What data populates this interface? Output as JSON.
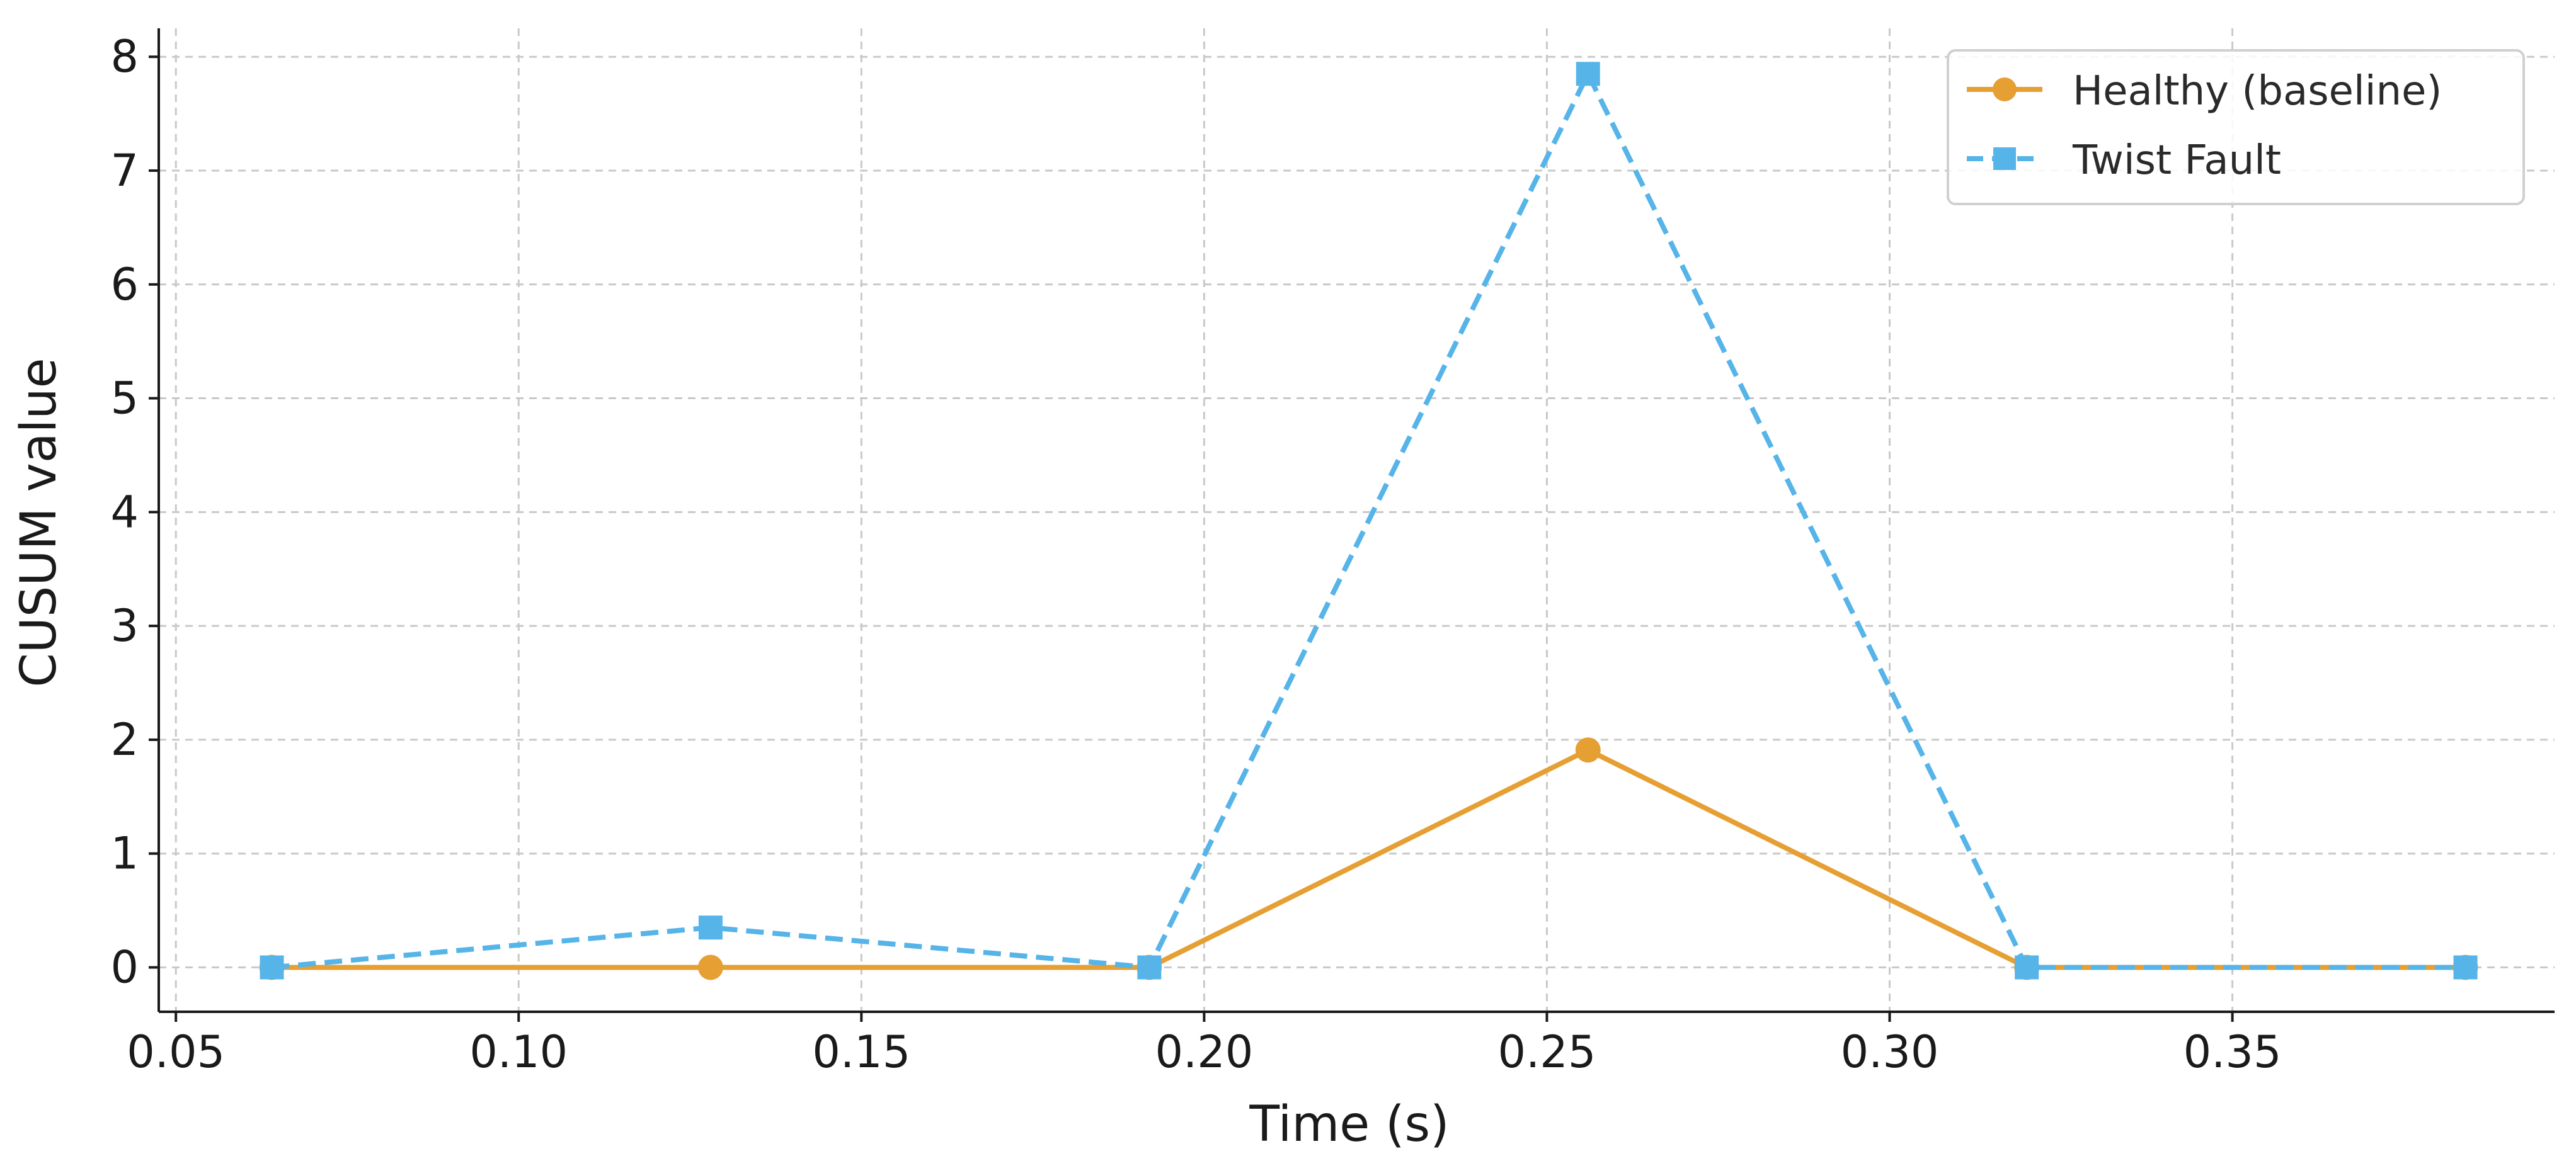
{
  "chart_data": {
    "type": "line",
    "title": "",
    "xlabel": "Time (s)",
    "ylabel": "CUSUM value",
    "xlim": [
      0.0475,
      0.397
    ],
    "ylim": [
      -0.39,
      8.25
    ],
    "x_ticks": [
      0.05,
      0.1,
      0.15,
      0.2,
      0.25,
      0.3,
      0.35
    ],
    "x_tick_labels": [
      "0.05",
      "0.10",
      "0.15",
      "0.20",
      "0.25",
      "0.30",
      "0.35"
    ],
    "y_ticks": [
      0,
      1,
      2,
      3,
      4,
      5,
      6,
      7,
      8
    ],
    "y_tick_labels": [
      "0",
      "1",
      "2",
      "3",
      "4",
      "5",
      "6",
      "7",
      "8"
    ],
    "grid": true,
    "legend_position": "top-right",
    "series": [
      {
        "name": "Healthy (baseline)",
        "color": "#E69F33",
        "line_style": "solid",
        "marker": "circle",
        "x": [
          0.064,
          0.128,
          0.192,
          0.256,
          0.32,
          0.384
        ],
        "y": [
          0,
          0,
          0,
          1.91,
          0,
          0
        ]
      },
      {
        "name": "Twist Fault",
        "color": "#56B4E9",
        "line_style": "dashed",
        "marker": "square",
        "x": [
          0.064,
          0.128,
          0.192,
          0.256,
          0.32,
          0.384
        ],
        "y": [
          0,
          0.35,
          0,
          7.85,
          0,
          0
        ]
      }
    ]
  }
}
